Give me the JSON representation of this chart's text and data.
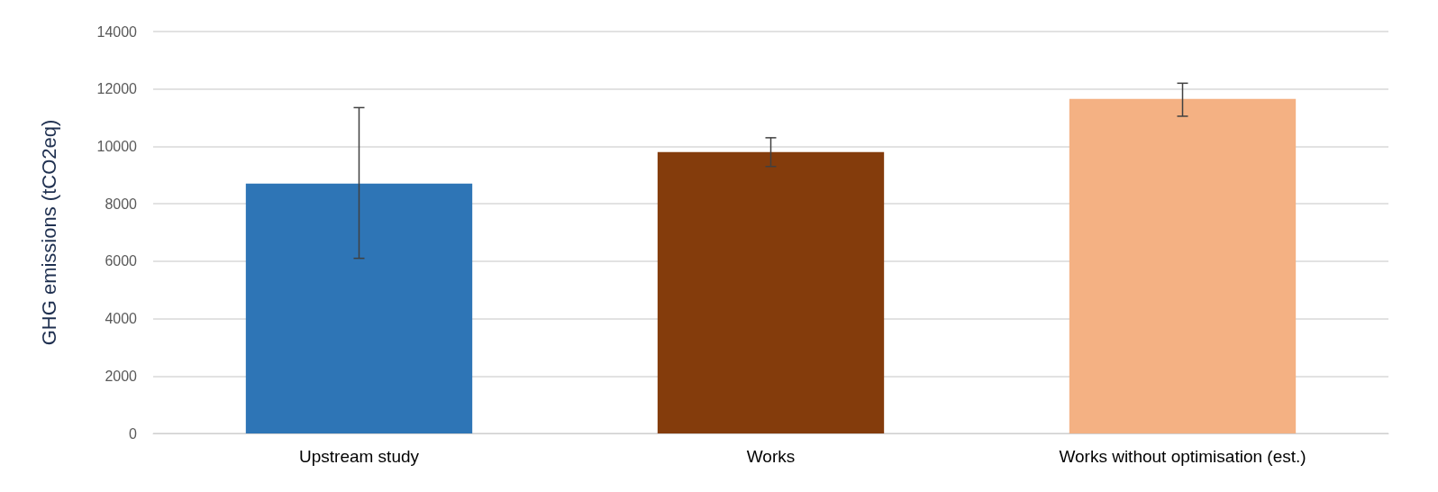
{
  "chart_data": {
    "type": "bar",
    "ylabel": "GHG emissions (tCO2eq)",
    "categories": [
      "Upstream study",
      "Works",
      "Works without optimisation (est.)"
    ],
    "values": [
      8700,
      9800,
      11650
    ],
    "colors": [
      "#2e75b6",
      "#843c0c",
      "#f4b183"
    ],
    "errors": [
      [
        6100,
        11350
      ],
      [
        9300,
        10300
      ],
      [
        11050,
        12200
      ]
    ],
    "ylim": [
      0,
      14000
    ],
    "yticks": [
      0,
      2000,
      4000,
      6000,
      8000,
      10000,
      12000,
      14000
    ],
    "grid": "y"
  }
}
